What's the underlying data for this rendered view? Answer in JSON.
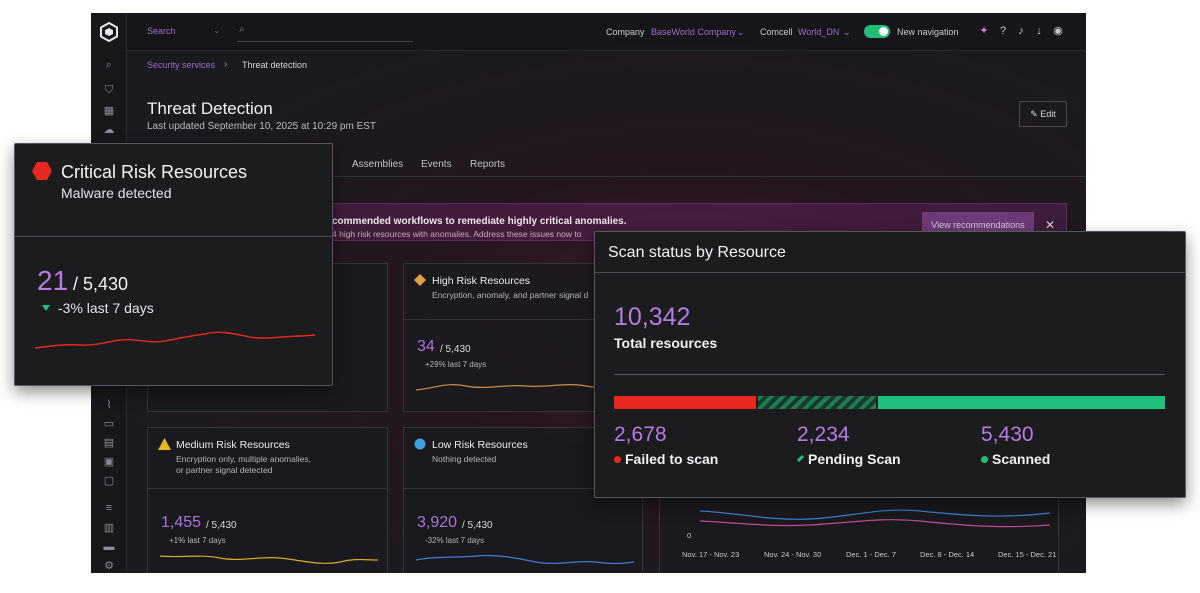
{
  "app": {
    "topbar": {
      "search_label": "Search",
      "company_label": "Company",
      "company_value": "BaseWorld Company",
      "comcell_label": "Comcell",
      "comcell_value": "World_DN",
      "new_nav_label": "New navigation"
    },
    "breadcrumb": {
      "parent": "Security services",
      "current": "Threat detection"
    },
    "page": {
      "title": "Threat Detection",
      "updated": "Last updated September 10, 2025 at 10:29 pm EST",
      "edit_label": "Edit"
    },
    "tabs": [
      "Assemblies",
      "Events",
      "Reports"
    ],
    "banner": {
      "title": "commended workflows to remediate highly critical anomalies.",
      "subtitle": "4 high risk resources with anomalies. Address these issues now to",
      "button": "View recommendations"
    },
    "cards": {
      "high": {
        "title": "High Risk Resources",
        "desc": "Encryption, anomaly, and partner signal d",
        "value": "34",
        "of": "/ 5,430",
        "change": "+29% last 7 days"
      },
      "medium": {
        "title": "Medium Risk Resources",
        "desc": "Encryption only, multiple anomalies,\nor partner signal detected",
        "value": "1,455",
        "of": "/ 5,430",
        "change": "+1% last 7 days"
      },
      "low": {
        "title": "Low Risk Resources",
        "desc": "Nothing detected",
        "value": "3,920",
        "of": "/ 5,430",
        "change": "-32% last 7 days"
      }
    },
    "trend_axis": {
      "zero": "0",
      "dates": [
        "Nov. 17 - Nov. 23",
        "Nov. 24 - Nov. 30",
        "Dec. 1 - Dec. 7",
        "Dec. 8 - Dec. 14",
        "Dec. 15 - Dec. 21"
      ]
    }
  },
  "critical_card": {
    "title": "Critical Risk Resources",
    "subtitle": "Malware detected",
    "value": "21",
    "of": "/ 5,430",
    "change": "-3% last 7 days",
    "change_direction": "down",
    "accent": "#e8281e"
  },
  "scan_card": {
    "title": "Scan status by Resource",
    "total": "10,342",
    "total_label": "Total resources",
    "segments": [
      {
        "key": "failed",
        "label": "Failed to scan",
        "value": "2,678",
        "color": "#e8281e"
      },
      {
        "key": "pending",
        "label": "Pending Scan",
        "value": "2,234",
        "color": "#1e7d55"
      },
      {
        "key": "scanned",
        "label": "Scanned",
        "value": "5,430",
        "color": "#1fc07c"
      }
    ]
  },
  "colors": {
    "accent_purple": "#b67ce6",
    "critical_red": "#e8281e",
    "success_green": "#1fc07c",
    "warning_yellow": "#e8b923",
    "high_orange": "#e0a040",
    "low_blue": "#3fa0e0"
  }
}
